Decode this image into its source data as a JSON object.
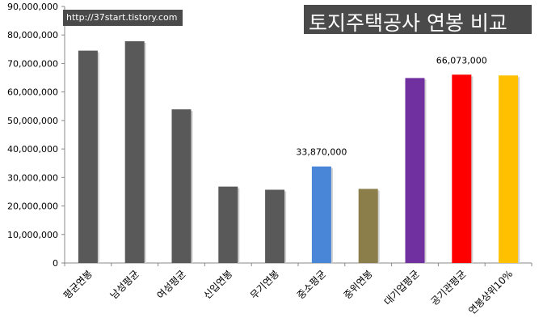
{
  "watermark": {
    "url": "http://37start.tistory.com"
  },
  "chart_data": {
    "type": "bar",
    "title": "토지주택공사 연봉 비교",
    "xlabel": "",
    "ylabel": "",
    "ylim": [
      0,
      90000000
    ],
    "ytick_labels": [
      "0",
      "10,000,000",
      "20,000,000",
      "30,000,000",
      "40,000,000",
      "50,000,000",
      "60,000,000",
      "70,000,000",
      "80,000,000",
      "90,000,000"
    ],
    "grid": false,
    "categories": [
      "평균연봉",
      "남성평균",
      "여성평균",
      "신입연봉",
      "무기연봉",
      "중소평균",
      "중위연봉",
      "대기업평균",
      "공기관평균",
      "연봉상위10%"
    ],
    "values": [
      74500000,
      77800000,
      53900000,
      26800000,
      25700000,
      33870000,
      26000000,
      64900000,
      66073000,
      65800000
    ],
    "colors": [
      "#595959",
      "#595959",
      "#595959",
      "#595959",
      "#595959",
      "#4a86d8",
      "#8b7e4a",
      "#7030a0",
      "#ff0000",
      "#ffc000"
    ],
    "data_labels": [
      {
        "index": 5,
        "text": "33,870,000"
      },
      {
        "index": 8,
        "text": "66,073,000"
      }
    ]
  }
}
